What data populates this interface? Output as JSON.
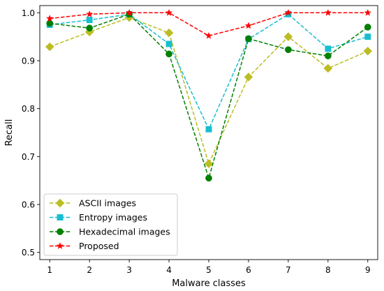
{
  "chart_data": {
    "type": "line",
    "title": "",
    "xlabel": "Malware classes",
    "ylabel": "Recall",
    "x": [
      1,
      2,
      3,
      4,
      5,
      6,
      7,
      8,
      9
    ],
    "xlim": [
      0.75,
      9.25
    ],
    "ylim": [
      0.485,
      1.015
    ],
    "yticks": [
      0.5,
      0.6,
      0.7,
      0.8,
      0.9,
      1.0
    ],
    "ytick_labels": [
      "0.5",
      "0.6",
      "0.7",
      "0.8",
      "0.9",
      "1.0"
    ],
    "xtick_labels": [
      "1",
      "2",
      "3",
      "4",
      "5",
      "6",
      "7",
      "8",
      "9"
    ],
    "grid": false,
    "legend_position": "lower-left",
    "series": [
      {
        "name": "ASCII images",
        "color": "#bcbd22",
        "marker": "diamond",
        "linestyle": "dashed",
        "values": [
          0.929,
          0.96,
          0.99,
          0.958,
          0.685,
          0.866,
          0.95,
          0.884,
          0.92
        ]
      },
      {
        "name": "Entropy images",
        "color": "#17becf",
        "marker": "square",
        "linestyle": "dashed",
        "values": [
          0.975,
          0.985,
          0.997,
          0.935,
          0.757,
          0.945,
          0.997,
          0.925,
          0.95
        ]
      },
      {
        "name": "Hexadecimal images",
        "color": "#008000",
        "marker": "circle",
        "linestyle": "dashed",
        "values": [
          0.978,
          0.968,
          0.997,
          0.914,
          0.655,
          0.946,
          0.923,
          0.91,
          0.97
        ]
      },
      {
        "name": "Proposed",
        "color": "#ff0000",
        "marker": "star",
        "linestyle": "dashed",
        "values": [
          0.988,
          0.997,
          1.0,
          1.0,
          0.952,
          0.973,
          1.0,
          1.0,
          1.0
        ]
      }
    ]
  }
}
